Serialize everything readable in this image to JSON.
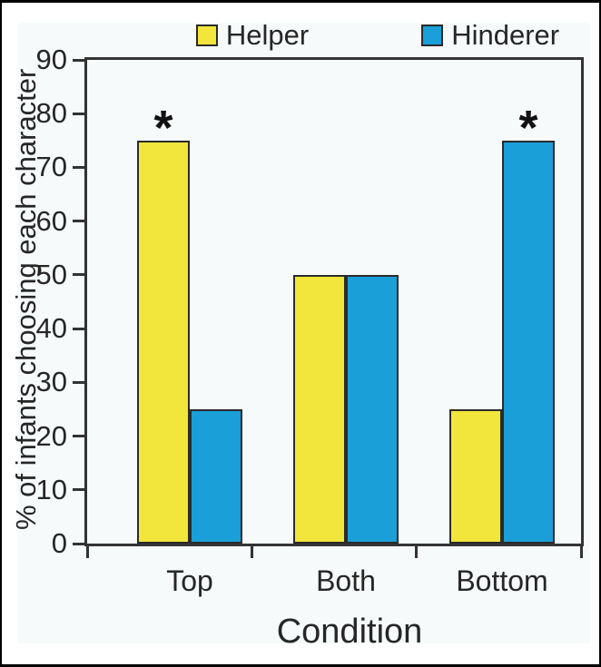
{
  "chart_data": {
    "type": "bar",
    "title": "",
    "categories": [
      "Top",
      "Both",
      "Bottom"
    ],
    "series": [
      {
        "name": "Helper",
        "color": "#F2E63C",
        "values": [
          75,
          50,
          25
        ]
      },
      {
        "name": "Hinderer",
        "color": "#1A9FD9",
        "values": [
          25,
          50,
          75
        ]
      }
    ],
    "annotations": [
      {
        "category": "Top",
        "series": "Helper",
        "symbol": "*"
      },
      {
        "category": "Bottom",
        "series": "Hinderer",
        "symbol": "*"
      }
    ],
    "xlabel": "Condition",
    "ylabel": "% of infants choosing each character",
    "ylim": [
      0,
      90
    ],
    "yticks": [
      0,
      10,
      20,
      30,
      40,
      50,
      60,
      70,
      80,
      90
    ],
    "legend_position": "top",
    "grid": false,
    "colors": {
      "bar_border": "#2B2B2B",
      "axis": "#333333",
      "text": "#262626",
      "panel_background": "#F6FAFB",
      "figure_border": "#000000"
    }
  }
}
